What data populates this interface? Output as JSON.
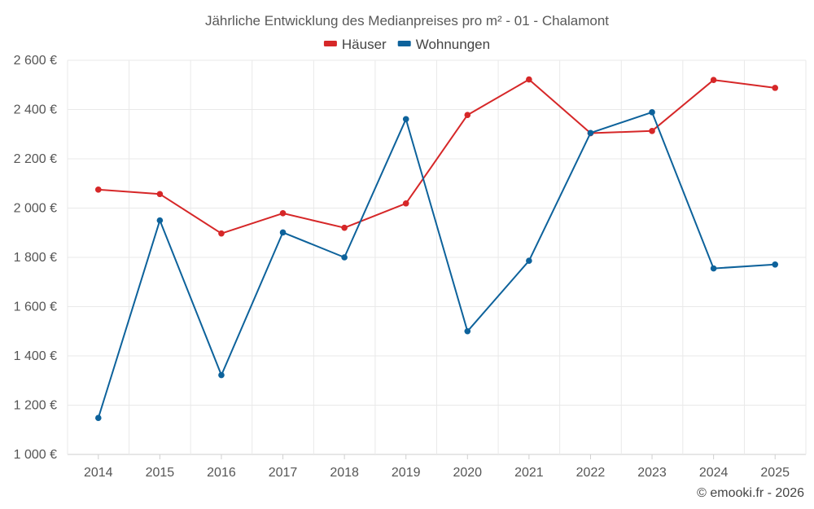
{
  "chart_data": {
    "type": "line",
    "title": "Jährliche Entwicklung des Medianpreises pro m² - 01 - Chalamont",
    "categories": [
      "2014",
      "2015",
      "2016",
      "2017",
      "2018",
      "2019",
      "2020",
      "2021",
      "2022",
      "2023",
      "2024",
      "2025"
    ],
    "series": [
      {
        "name": "Häuser",
        "color": "#d62728",
        "values": [
          2075,
          2057,
          1897,
          1979,
          1920,
          2019,
          2378,
          2522,
          2304,
          2313,
          2520,
          2488
        ]
      },
      {
        "name": "Wohnungen",
        "color": "#0d629b",
        "values": [
          1148,
          1950,
          1322,
          1901,
          1800,
          2361,
          1500,
          1786,
          2305,
          2389,
          1755,
          1771
        ]
      }
    ],
    "ylim": [
      1000,
      2600
    ],
    "yticks": [
      1000,
      1200,
      1400,
      1600,
      1800,
      2000,
      2200,
      2400,
      2600
    ],
    "ytick_labels": [
      "1 000 €",
      "1 200 €",
      "1 400 €",
      "1 600 €",
      "1 800 €",
      "2 000 €",
      "2 200 €",
      "2 400 €",
      "2 600 €"
    ],
    "legend_position": "top-center",
    "grid": true
  },
  "credit": "© emooki.fr - 2026"
}
